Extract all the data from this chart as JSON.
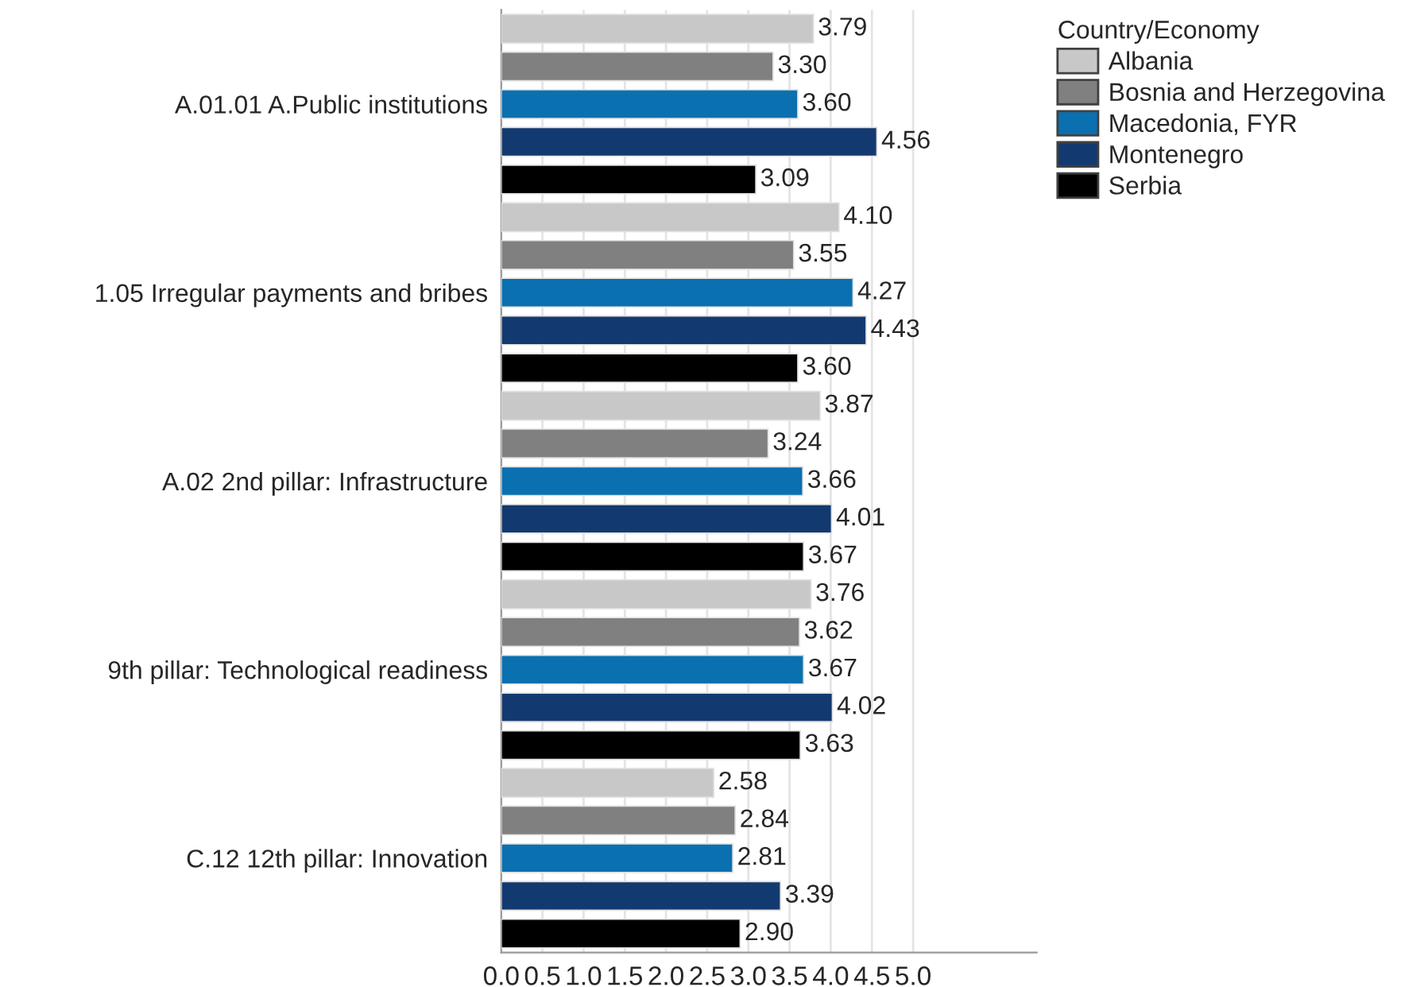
{
  "chart_data": {
    "type": "bar",
    "orientation": "horizontal",
    "categories": [
      "A.01.01 A.Public institutions",
      "1.05 Irregular payments and bribes",
      "A.02 2nd pillar: Infrastructure",
      "9th pillar: Technological readiness",
      "C.12 12th pillar: Innovation"
    ],
    "legend_title": "Country/Economy",
    "legend": "top right",
    "grid": "x",
    "xlim": [
      0,
      6.5
    ],
    "xticks": [
      {
        "value": 0,
        "label": "0.0"
      },
      {
        "value": 0.5,
        "label": "0.5"
      },
      {
        "value": 1,
        "label": "1.0"
      },
      {
        "value": 1.5,
        "label": "1.5"
      },
      {
        "value": 2,
        "label": "2.0"
      },
      {
        "value": 2.5,
        "label": "2.5"
      },
      {
        "value": 3,
        "label": "3.0"
      },
      {
        "value": 3.5,
        "label": "3.5"
      },
      {
        "value": 4,
        "label": "4.0"
      },
      {
        "value": 4.5,
        "label": "4.5"
      },
      {
        "value": 5,
        "label": "5.0"
      }
    ],
    "series": [
      {
        "name": "Albania",
        "color": "#c8c8c8",
        "values": [
          3.79,
          4.1,
          3.87,
          3.76,
          2.58
        ],
        "value_labels": [
          "3.79",
          "4.10",
          "3.87",
          "3.76",
          "2.58"
        ]
      },
      {
        "name": "Bosnia and Herzegovina",
        "color": "#808080",
        "values": [
          3.3,
          3.55,
          3.24,
          3.62,
          2.84
        ],
        "value_labels": [
          "3.30",
          "3.55",
          "3.24",
          "3.62",
          "2.84"
        ]
      },
      {
        "name": "Macedonia, FYR",
        "color": "#0a70b0",
        "values": [
          3.6,
          4.27,
          3.66,
          3.67,
          2.81
        ],
        "value_labels": [
          "3.60",
          "4.27",
          "3.66",
          "3.67",
          "2.81"
        ]
      },
      {
        "name": "Montenegro",
        "color": "#133a70",
        "values": [
          4.56,
          4.43,
          4.01,
          4.02,
          3.39
        ],
        "value_labels": [
          "4.56",
          "4.43",
          "4.01",
          "4.02",
          "3.39"
        ]
      },
      {
        "name": "Serbia",
        "color": "#000000",
        "values": [
          3.09,
          3.6,
          3.67,
          3.63,
          2.9
        ],
        "value_labels": [
          "3.09",
          "3.60",
          "3.67",
          "3.63",
          "2.90"
        ]
      }
    ]
  }
}
